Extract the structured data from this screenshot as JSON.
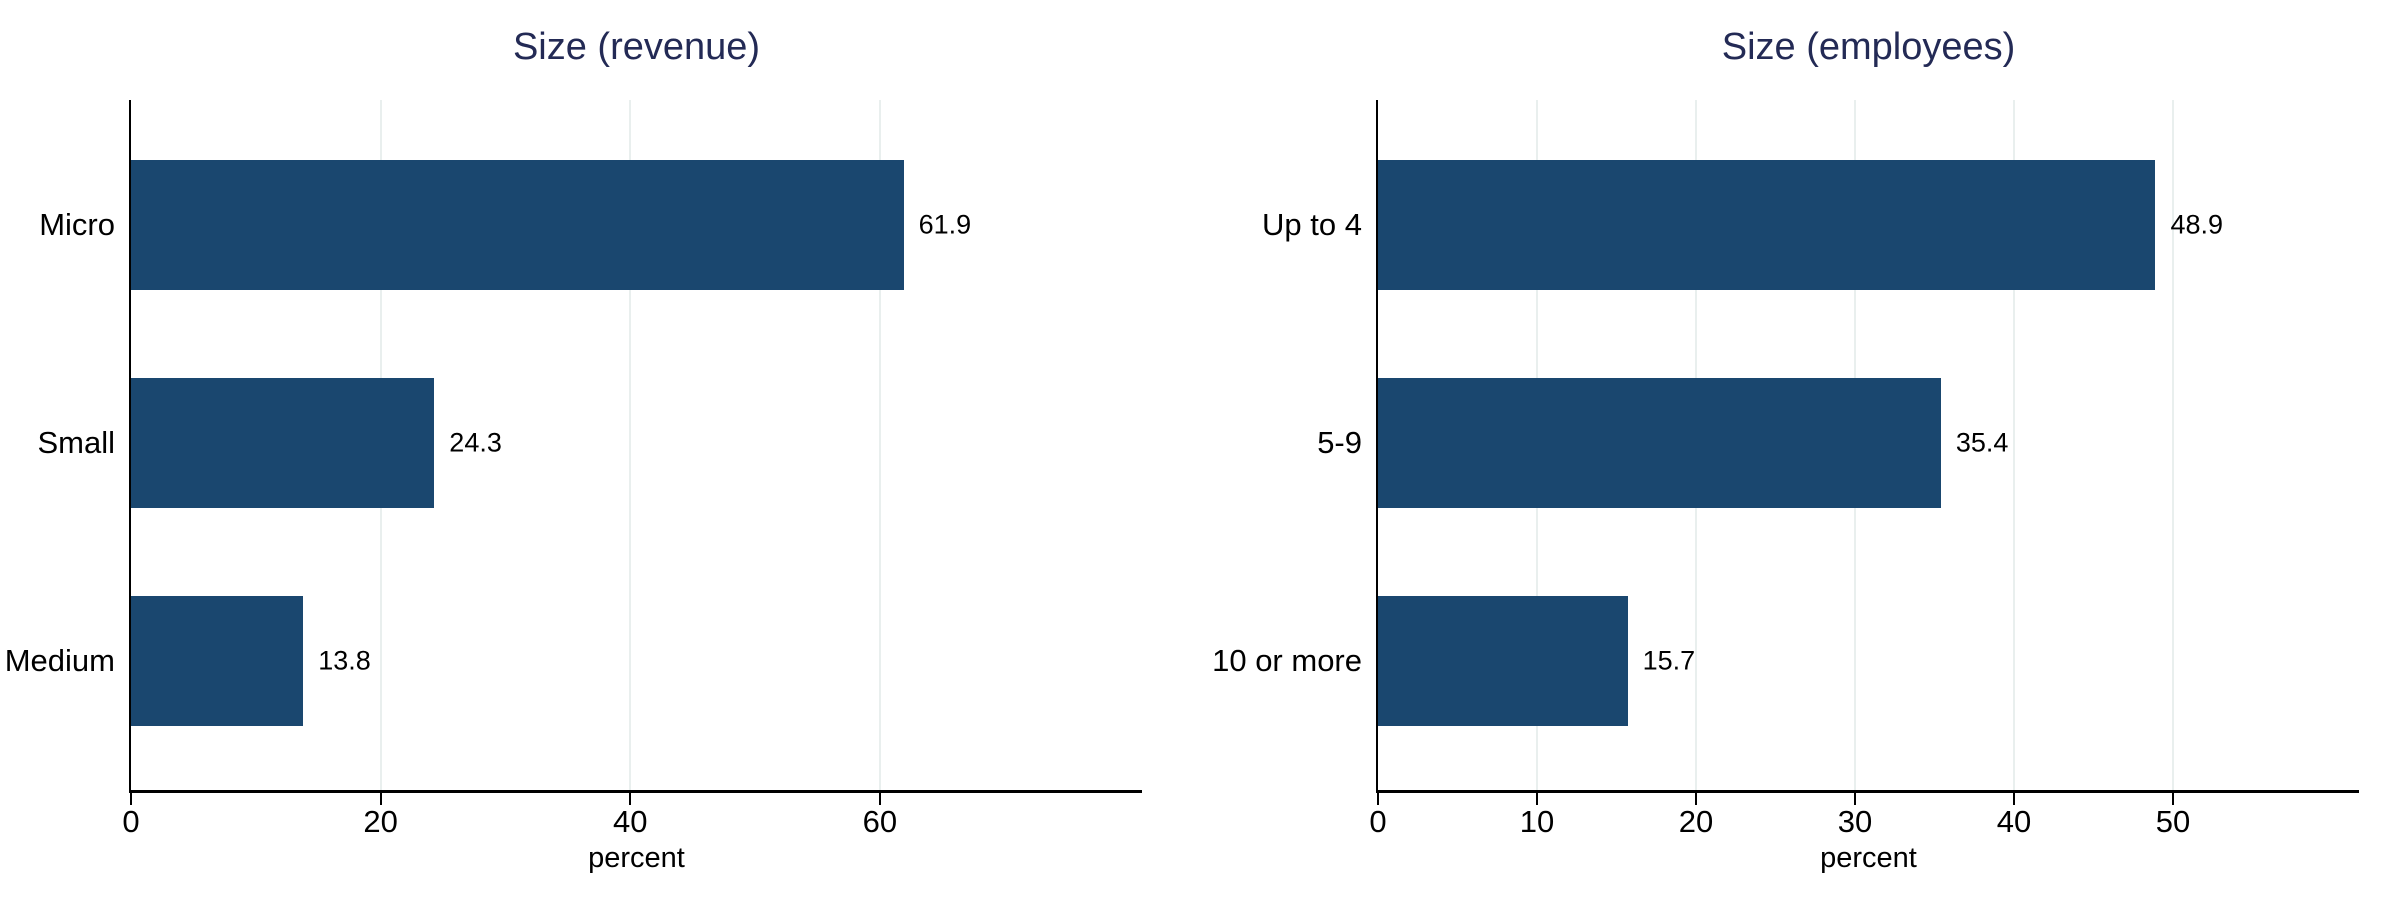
{
  "styles": {
    "background": "#ffffff",
    "bar_color": "#1a476f",
    "title_color": "#232a55",
    "grid_color": "#e9efee",
    "axis_color": "#000000",
    "text_color": "#000000"
  },
  "chart_data": [
    {
      "type": "bar",
      "orientation": "horizontal",
      "title": "Size (revenue)",
      "xlabel": "percent",
      "categories": [
        "Micro",
        "Small",
        "Medium"
      ],
      "values": [
        61.9,
        24.3,
        13.8
      ],
      "value_labels": [
        "61.9",
        "24.3",
        "13.8"
      ],
      "xticks": [
        0,
        20,
        40,
        60
      ],
      "xlim": [
        0,
        81
      ],
      "grid": "vertical-lines-at-labeled-ticks",
      "legend": "none"
    },
    {
      "type": "bar",
      "orientation": "horizontal",
      "title": "Size (employees)",
      "xlabel": "percent",
      "categories": [
        "Up to 4",
        "5-9",
        "10 or more"
      ],
      "values": [
        48.9,
        35.4,
        15.7
      ],
      "value_labels": [
        "48.9",
        "35.4",
        "15.7"
      ],
      "xticks": [
        0,
        10,
        20,
        30,
        40,
        50
      ],
      "xlim": [
        0,
        61.7
      ],
      "grid": "vertical-lines-at-labeled-ticks",
      "legend": "none"
    }
  ]
}
